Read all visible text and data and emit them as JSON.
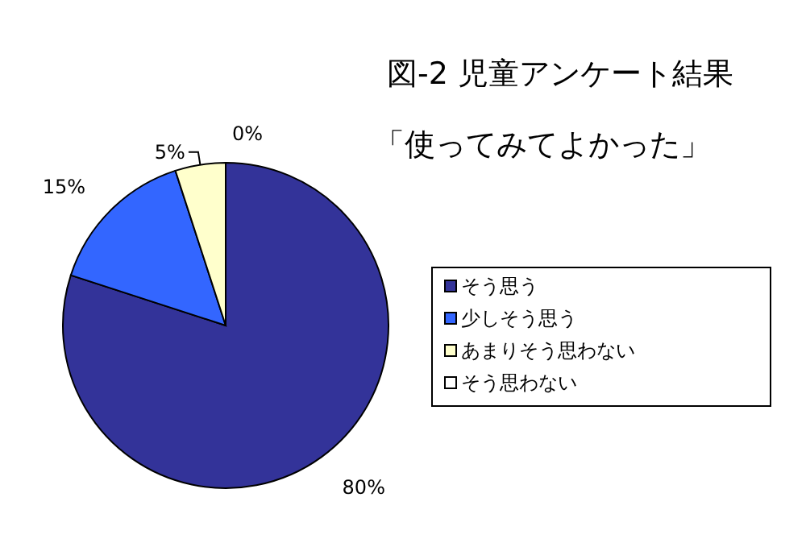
{
  "chart_data": {
    "type": "pie",
    "title": "図-2 児童アンケート結果",
    "subtitle": "「使ってみてよかった」",
    "categories": [
      "そう思う",
      "少しそう思う",
      "あまりそう思わない",
      "そう思わない"
    ],
    "values": [
      80,
      15,
      5,
      0
    ],
    "colors": [
      "#333399",
      "#3366ff",
      "#ffffcc",
      "#ffffff"
    ],
    "value_labels": [
      "80%",
      "15%",
      "5%",
      "0%"
    ],
    "legend": "right"
  }
}
